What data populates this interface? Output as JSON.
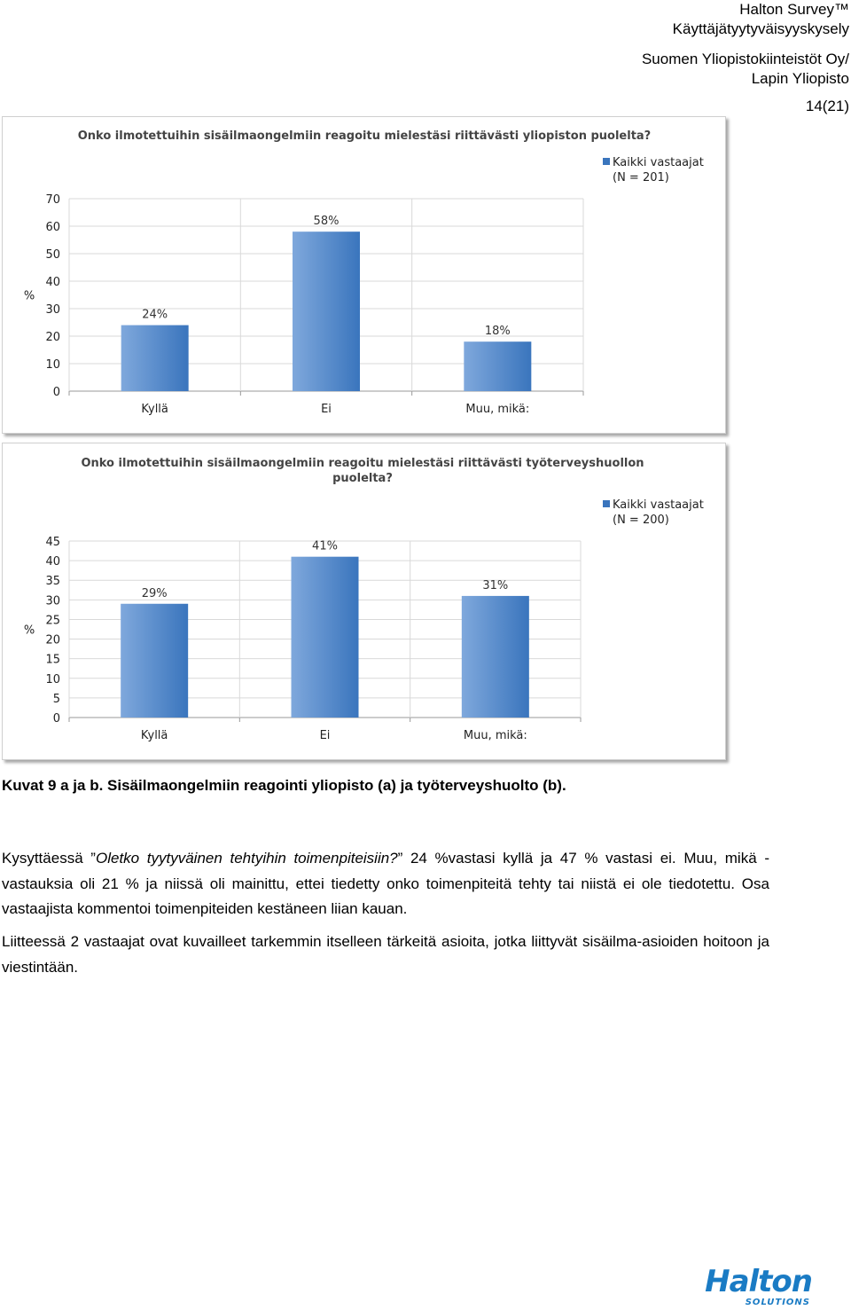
{
  "header": {
    "line1": "Halton Survey™",
    "line2": "Käyttäjätyytyväisyyskysely",
    "line3": "Suomen Yliopistokiinteistöt Oy/",
    "line4": "Lapin Yliopisto",
    "page": "14(21)"
  },
  "colors": {
    "bar": "#3a75bd",
    "bar_light": "#7fa8dc",
    "logo": "#1a7bc4"
  },
  "chart_data": [
    {
      "type": "bar",
      "title": "Onko ilmotettuihin sisäilmaongelmiin reagoitu mielestäsi riittävästi yliopiston puolelta?",
      "title_lines": [
        "Onko ilmotettuihin sisäilmaongelmiin reagoitu mielestäsi riittävästi yliopiston puolelta?"
      ],
      "categories": [
        "Kyllä",
        "Ei",
        "Muu, mikä:"
      ],
      "series": [
        {
          "name": "Kaikki vastaajat (N = 201)",
          "values": [
            24,
            58,
            18
          ]
        }
      ],
      "legend_lines": [
        "Kaikki vastaajat",
        "(N = 201)"
      ],
      "data_labels": [
        "24%",
        "58%",
        "18%"
      ],
      "ylabel": "%",
      "ylim": [
        0,
        70
      ],
      "yticks": [
        0,
        10,
        20,
        30,
        40,
        50,
        60,
        70
      ],
      "grid": true,
      "legend_position": "top-right"
    },
    {
      "type": "bar",
      "title": "Onko ilmotettuihin sisäilmaongelmiin reagoitu mielestäsi riittävästi työterveyshuollon puolelta?",
      "title_lines": [
        "Onko ilmotettuihin sisäilmaongelmiin reagoitu mielestäsi riittävästi työterveyshuollon",
        "puolelta?"
      ],
      "categories": [
        "Kyllä",
        "Ei",
        "Muu, mikä:"
      ],
      "series": [
        {
          "name": "Kaikki vastaajat (N = 200)",
          "values": [
            29,
            41,
            31
          ]
        }
      ],
      "legend_lines": [
        "Kaikki vastaajat",
        "(N = 200)"
      ],
      "data_labels": [
        "29%",
        "41%",
        "31%"
      ],
      "ylabel": "%",
      "ylim": [
        0,
        45
      ],
      "yticks": [
        0,
        5,
        10,
        15,
        20,
        25,
        30,
        35,
        40,
        45
      ],
      "grid": true,
      "legend_position": "top-right"
    }
  ],
  "caption": "Kuvat 9 a ja b. Sisäilmaongelmiin reagointi yliopisto (a) ja työterveyshuolto (b).",
  "paragraph1": {
    "lead": "Kysyttäessä ”",
    "question": "Oletko tyytyväinen tehtyihin toimenpiteisiin?",
    "rest": "” 24 %vastasi kyllä ja 47 % vastasi ei. Muu, mikä -vastauksia oli 21 % ja niissä oli mainittu, ettei tiedetty onko toimenpiteitä tehty tai niistä ei ole tiedotettu. Osa vastaajista kommentoi toimenpiteiden kestäneen liian kauan."
  },
  "paragraph2": "Liitteessä 2 vastaajat ovat kuvailleet tarkemmin itselleen tärkeitä asioita, jotka liittyvät sisäilma-asioiden hoitoon ja viestintään.",
  "logo": {
    "brand": "Halton",
    "tagline": "SOLUTIONS"
  }
}
